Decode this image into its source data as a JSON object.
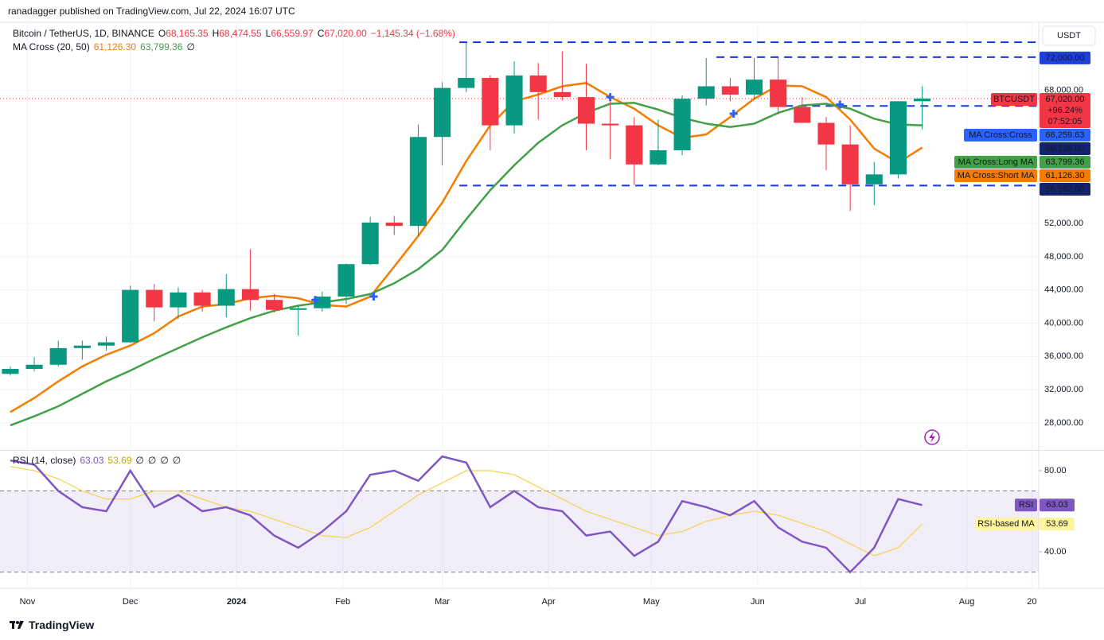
{
  "header": {
    "author_line": "ranadagger published on TradingView.com, Jul 22, 2024 16:07 UTC"
  },
  "footer": {
    "brand": "TradingView"
  },
  "chart_data": {
    "type": "candlestick",
    "legend": {
      "symbol": "Bitcoin / TetherUS, 1D, BINANCE",
      "ohlc": [
        {
          "key": "O",
          "value": "68,165.35"
        },
        {
          "key": "H",
          "value": "68,474.55"
        },
        {
          "key": "L",
          "value": "66,559.97"
        },
        {
          "key": "C",
          "value": "67,020.00"
        }
      ],
      "change": "−1,145.34 (−1.68%)"
    },
    "ma_legend": {
      "name": "MA Cross (20, 50)",
      "values": [
        "61,126.30",
        "63,799.36"
      ],
      "extra": "∅"
    },
    "currency": "USDT",
    "up_color": "#089981",
    "down_color": "#f23645",
    "xlim": [
      "2023-10-24",
      "2024-08-22"
    ],
    "xticks": [
      {
        "value": "2023-11-01",
        "label": "Nov"
      },
      {
        "value": "2023-12-01",
        "label": "Dec"
      },
      {
        "value": "2024-01-01",
        "label": "2024"
      },
      {
        "value": "2024-02-01",
        "label": "Feb"
      },
      {
        "value": "2024-03-01",
        "label": "Mar"
      },
      {
        "value": "2024-04-01",
        "label": "Apr"
      },
      {
        "value": "2024-05-01",
        "label": "May"
      },
      {
        "value": "2024-06-01",
        "label": "Jun"
      },
      {
        "value": "2024-07-01",
        "label": "Jul"
      },
      {
        "value": "2024-08-01",
        "label": "Aug"
      },
      {
        "value": "2024-08-20",
        "label": "20"
      }
    ],
    "ylim": [
      24840,
      76200
    ],
    "yticks": [
      {
        "value": 28000,
        "label": "28,000.00"
      },
      {
        "value": 32000,
        "label": "32,000.00"
      },
      {
        "value": 36000,
        "label": "36,000.00"
      },
      {
        "value": 40000,
        "label": "40,000.00"
      },
      {
        "value": 44000,
        "label": "44,000.00"
      },
      {
        "value": 48000,
        "label": "48,000.00"
      },
      {
        "value": 52000,
        "label": "52,000.00"
      },
      {
        "value": 68000,
        "label": "68,000.00"
      }
    ],
    "grid": true,
    "x": [
      "2023-10-27",
      "2023-11-03",
      "2023-11-10",
      "2023-11-17",
      "2023-11-24",
      "2023-12-01",
      "2023-12-08",
      "2023-12-15",
      "2023-12-22",
      "2023-12-29",
      "2024-01-05",
      "2024-01-12",
      "2024-01-19",
      "2024-01-26",
      "2024-02-02",
      "2024-02-09",
      "2024-02-16",
      "2024-02-23",
      "2024-03-01",
      "2024-03-08",
      "2024-03-15",
      "2024-03-22",
      "2024-03-29",
      "2024-04-05",
      "2024-04-12",
      "2024-04-19",
      "2024-04-26",
      "2024-05-03",
      "2024-05-10",
      "2024-05-17",
      "2024-05-24",
      "2024-05-31",
      "2024-06-07",
      "2024-06-14",
      "2024-06-21",
      "2024-06-28",
      "2024-07-05",
      "2024-07-12",
      "2024-07-19"
    ],
    "open": [
      33900,
      34500,
      35000,
      37000,
      37300,
      37700,
      44000,
      41900,
      43700,
      42100,
      44100,
      42800,
      41600,
      41800,
      43200,
      47100,
      52100,
      51700,
      62400,
      68300,
      69500,
      63800,
      69800,
      67800,
      67200,
      64000,
      63800,
      59100,
      60800,
      67000,
      68500,
      67500,
      69300,
      66000,
      64100,
      61500,
      56700,
      57900,
      66700
    ],
    "high": [
      34800,
      35900,
      37900,
      37900,
      38400,
      44500,
      44700,
      44300,
      44000,
      45900,
      48900,
      43500,
      42200,
      43800,
      47200,
      52800,
      52900,
      63900,
      69000,
      73800,
      69800,
      71500,
      71300,
      72700,
      71200,
      67200,
      64800,
      64500,
      67400,
      71900,
      69500,
      71900,
      71900,
      67200,
      64800,
      63800,
      59400,
      66300,
      68500
    ],
    "low": [
      33700,
      34200,
      34800,
      35600,
      36700,
      37600,
      40200,
      40500,
      41400,
      40700,
      41500,
      41300,
      38500,
      41400,
      42300,
      47000,
      50600,
      50500,
      59000,
      67800,
      60800,
      62800,
      64500,
      66800,
      60800,
      59700,
      56600,
      59000,
      60200,
      66200,
      66700,
      66900,
      65100,
      64100,
      58400,
      53500,
      54200,
      57400,
      63300
    ],
    "close": [
      34500,
      35000,
      37000,
      37300,
      37700,
      44000,
      41900,
      43700,
      42100,
      44100,
      42800,
      41600,
      41800,
      43200,
      47100,
      52100,
      51700,
      62400,
      68300,
      69500,
      63800,
      69800,
      67800,
      67200,
      64000,
      63800,
      59100,
      60800,
      67000,
      68500,
      67500,
      69300,
      66000,
      64100,
      61500,
      56700,
      57900,
      66700,
      67020
    ],
    "series": [
      {
        "name": "MA Cross:Short MA",
        "color": "#f57c00",
        "values": [
          29300,
          31000,
          33000,
          34800,
          36200,
          37300,
          38800,
          40800,
          42000,
          42300,
          43000,
          43300,
          43000,
          42200,
          42000,
          43200,
          46800,
          50500,
          54500,
          59500,
          63800,
          66700,
          67500,
          68500,
          68900,
          67200,
          65800,
          63800,
          62300,
          62700,
          64800,
          67000,
          68600,
          68500,
          67200,
          64500,
          61000,
          59300,
          61126.3
        ]
      },
      {
        "name": "MA Cross:Long MA",
        "color": "#43a047",
        "values": [
          27700,
          28800,
          30000,
          31500,
          33000,
          34300,
          35700,
          37000,
          38300,
          39500,
          40600,
          41500,
          42100,
          42500,
          42900,
          43500,
          44800,
          46500,
          48800,
          52500,
          56000,
          59000,
          61700,
          63800,
          65300,
          66400,
          66500,
          65700,
          64700,
          64000,
          63600,
          64000,
          65300,
          66200,
          66400,
          65800,
          64600,
          63900,
          63799.36
        ]
      }
    ],
    "crosses": [
      {
        "x": "2024-01-24",
        "y": 42800
      },
      {
        "x": "2024-02-10",
        "y": 43200
      },
      {
        "x": "2024-04-19",
        "y": 67200
      },
      {
        "x": "2024-05-25",
        "y": 65200
      },
      {
        "x": "2024-06-25",
        "y": 66300
      }
    ],
    "cross_color": "#2962ff",
    "levels": [
      {
        "value": 73800,
        "start": "2024-03-06"
      },
      {
        "value": 72000,
        "start": "2024-05-20",
        "label": "72,000.00",
        "color": "#1e40d8"
      },
      {
        "value": 66128,
        "start": "2024-06-09",
        "label": "66,128.00",
        "color": "#13236e"
      },
      {
        "value": 56552,
        "start": "2024-03-06",
        "label": "56,552.00",
        "color": "#13236e"
      }
    ],
    "level_color": "#1e36d6",
    "price_labels": [
      {
        "name": "BTCUSDT",
        "value": 67020,
        "label": "67,020.00",
        "change": "+96.24%",
        "countdown": "07:52:05",
        "color": "#f23645"
      },
      {
        "name": "MA Cross:Cross",
        "value": 66259.63,
        "label": "66,259.63",
        "color": "#2962ff"
      },
      {
        "name": "MA Cross:Long MA",
        "value": 63799.36,
        "label": "63,799.36",
        "color": "#43a047"
      },
      {
        "name": "MA Cross:Short MA",
        "value": 61126.3,
        "label": "61,126.30",
        "color": "#f57c00"
      }
    ],
    "rsi": {
      "legend": {
        "name": "RSI (14, close)",
        "values": [
          "63.03",
          "53.69"
        ],
        "extras": [
          "∅",
          "∅",
          "∅",
          "∅"
        ]
      },
      "ylim": [
        22,
        89.4
      ],
      "yticks": [
        {
          "value": 40,
          "label": "40.00"
        },
        {
          "value": 80,
          "label": "80.00"
        }
      ],
      "bands": [
        30,
        70
      ],
      "series": [
        {
          "name": "RSI",
          "color": "#7e57c2",
          "label": "63.03",
          "values": [
            85,
            83,
            70,
            62,
            60,
            80,
            62,
            68,
            60,
            62,
            58,
            48,
            42,
            50,
            60,
            78,
            80,
            75,
            87,
            84,
            62,
            70,
            62,
            60,
            48,
            50,
            38,
            45,
            65,
            62,
            58,
            65,
            52,
            45,
            42,
            30,
            42,
            66,
            63.03
          ]
        },
        {
          "name": "RSI-based MA",
          "color": "#f5d34a",
          "label": "53.69",
          "values": [
            82,
            80,
            76,
            70,
            66,
            66,
            70,
            70,
            66,
            62,
            60,
            56,
            52,
            48,
            47,
            52,
            60,
            68,
            74,
            80,
            80,
            78,
            72,
            66,
            60,
            56,
            52,
            48,
            50,
            55,
            58,
            60,
            58,
            54,
            50,
            44,
            38,
            42,
            53.69
          ]
        }
      ]
    }
  }
}
